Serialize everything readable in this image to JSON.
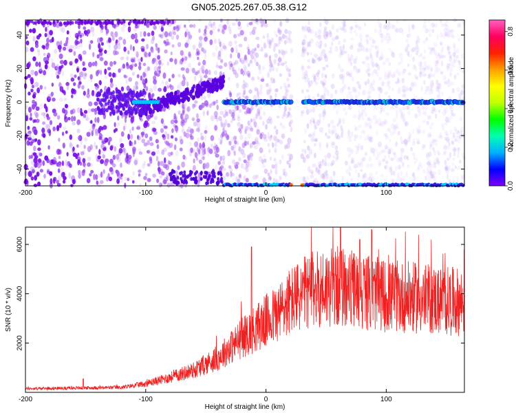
{
  "title": "GN05.2025.267.05.38.G12",
  "colors": {
    "signal": "#3a5fff",
    "snr_line": "#f02020",
    "dot_base": "#8a2be2"
  },
  "chart_data": [
    {
      "type": "heatmap",
      "xlabel": "Height of straight line (km)",
      "ylabel": "Frequency (Hz)",
      "xlim": [
        -200,
        165
      ],
      "ylim": [
        -50,
        49
      ],
      "xticks": [
        -200,
        -100,
        0,
        100
      ],
      "yticks": [
        -40,
        -20,
        0,
        20,
        40
      ],
      "colorbar": {
        "label": "Normalized spectral amplitude",
        "range": [
          0,
          0.86
        ],
        "ticks": [
          "0.0",
          "0.2",
          "0.4",
          "0.6",
          "0.8"
        ],
        "colormap": [
          "#8000ff",
          "#0000ff",
          "#00b0ff",
          "#00ffb0",
          "#00ff00",
          "#c0ff00",
          "#ffff00",
          "#ffa000",
          "#ff2000",
          "#ff0060",
          "#ff60c0"
        ]
      },
      "features": {
        "main_tone_hz": 0,
        "main_tone_span_km": [
          -35,
          165
        ],
        "rising_streak_km": [
          -105,
          -35
        ],
        "rising_streak_hz": [
          -5,
          12
        ],
        "lower_edge_hz": -49,
        "data_gap_km": [
          22,
          30
        ]
      }
    },
    {
      "type": "line",
      "xlabel": "Height of straight line (km)",
      "ylabel": "SNR (10 * v/v)",
      "xlim": [
        -200,
        165
      ],
      "ylim": [
        0,
        6700
      ],
      "xticks": [
        -200,
        -100,
        0,
        100
      ],
      "yticks": [
        2000,
        4000,
        6000
      ],
      "profile": {
        "x": [
          -200,
          -150,
          -120,
          -100,
          -80,
          -60,
          -40,
          -20,
          0,
          10,
          20,
          40,
          60,
          80,
          100,
          120,
          140,
          165
        ],
        "y": [
          150,
          180,
          200,
          350,
          600,
          900,
          1400,
          2200,
          2900,
          3200,
          3700,
          4200,
          4300,
          4100,
          3900,
          3850,
          3750,
          3650
        ]
      },
      "peaks": [
        {
          "x": -152,
          "y": 550
        },
        {
          "x": -12,
          "y": 5900
        },
        {
          "x": 62,
          "y": 6700
        },
        {
          "x": 78,
          "y": 6200
        },
        {
          "x": 88,
          "y": 6600
        }
      ]
    }
  ]
}
